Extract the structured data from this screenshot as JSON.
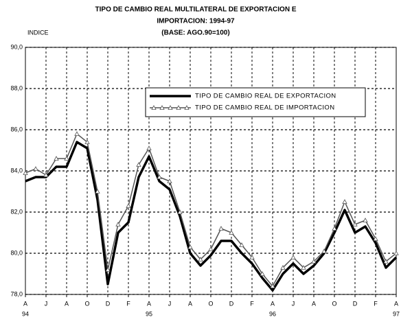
{
  "chart_data": {
    "type": "line",
    "title": [
      "TIPO DE CAMBIO REAL MULTILATERAL DE EXPORTACION E",
      "IMPORTACION: 1994-97",
      "(BASE: AGO.90=100)"
    ],
    "ylabel": "INDICE",
    "categories": [
      "A",
      null,
      "J",
      null,
      "A",
      null,
      "O",
      null,
      "D",
      null,
      "F",
      null,
      "A",
      null,
      "J",
      null,
      "A",
      null,
      "O",
      null,
      "D",
      null,
      "F",
      null,
      "A",
      null,
      "J",
      null,
      "A",
      null,
      "O",
      null,
      "D",
      null,
      "F",
      null,
      "A"
    ],
    "year_labels": [
      "94",
      null,
      null,
      null,
      null,
      null,
      null,
      null,
      null,
      null,
      null,
      null,
      "95",
      null,
      null,
      null,
      null,
      null,
      null,
      null,
      null,
      null,
      null,
      null,
      "96",
      null,
      null,
      null,
      null,
      null,
      null,
      null,
      null,
      null,
      null,
      null,
      "97"
    ],
    "series": [
      {
        "name": "TIPO DE CAMBIO REAL DE EXPORTACION",
        "color": "#000000",
        "values": [
          83.5,
          83.7,
          83.7,
          84.2,
          84.2,
          85.4,
          85.1,
          82.6,
          78.5,
          81.0,
          81.5,
          83.7,
          84.7,
          83.5,
          83.1,
          81.8,
          80.0,
          79.4,
          79.9,
          80.6,
          80.6,
          80.0,
          79.5,
          78.8,
          78.2,
          79.0,
          79.5,
          79.0,
          79.4,
          80.0,
          81.0,
          82.1,
          81.0,
          81.3,
          80.5,
          79.3,
          79.8
        ]
      },
      {
        "name": "TIPO DE CAMBIO REAL DE IMPORTACION",
        "color": "#555555",
        "values": [
          83.9,
          84.1,
          83.8,
          84.6,
          84.6,
          85.8,
          85.4,
          83.0,
          79.2,
          81.4,
          82.3,
          84.3,
          85.1,
          83.7,
          83.5,
          82.0,
          80.3,
          79.7,
          80.2,
          81.2,
          81.0,
          80.4,
          79.8,
          79.0,
          78.4,
          79.3,
          79.8,
          79.3,
          79.6,
          80.1,
          81.2,
          82.5,
          81.4,
          81.6,
          80.7,
          79.6,
          80.0
        ]
      }
    ],
    "ylim": [
      78,
      90
    ],
    "yticks": [
      {
        "value": 78,
        "label": "78,0"
      },
      {
        "value": 80,
        "label": "80,0"
      },
      {
        "value": 82,
        "label": "82,0"
      },
      {
        "value": 84,
        "label": "84,0"
      },
      {
        "value": 86,
        "label": "86,0"
      },
      {
        "value": 88,
        "label": "88,0"
      },
      {
        "value": 90,
        "label": "90,0"
      }
    ],
    "grid": true
  }
}
